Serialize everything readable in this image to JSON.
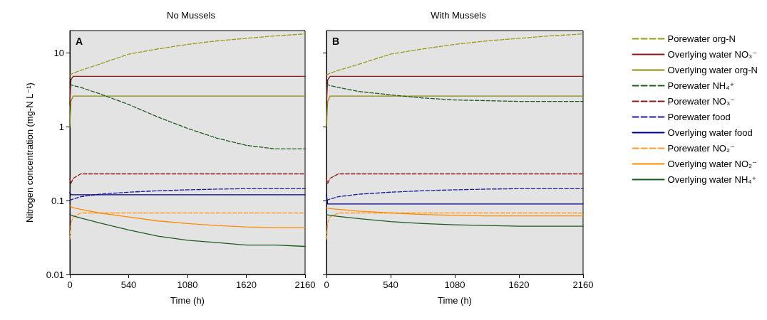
{
  "chart_data": [
    {
      "type": "line",
      "title": "No Mussels",
      "xlabel": "Time (h)",
      "ylabel": "Nitrogen concentration (mg-N L⁻¹)",
      "annotations": [
        "A"
      ],
      "x": [
        0,
        10,
        30,
        100,
        270,
        540,
        810,
        1080,
        1350,
        1620,
        1890,
        2160
      ],
      "xlim": [
        0,
        2160
      ],
      "xticks": [
        0,
        540,
        1080,
        1620,
        2160
      ],
      "ylim": [
        0.01,
        20
      ],
      "yticks": [
        0.01,
        0.1,
        1,
        10
      ],
      "log": "y",
      "grid": false,
      "legend": false,
      "marker": "none",
      "series": [
        {
          "color": "#9a9a1a",
          "line_style": "dashed",
          "values": [
            5,
            5.1,
            5.3,
            5.8,
            7,
            9.6,
            11.3,
            13,
            14.5,
            15.7,
            17,
            18
          ]
        },
        {
          "color": "#8b1a1a",
          "line_style": "solid",
          "values": [
            2,
            4.3,
            4.8,
            4.8,
            4.8,
            4.8,
            4.8,
            4.8,
            4.8,
            4.8,
            4.8,
            4.8
          ]
        },
        {
          "color": "#8c8c10",
          "line_style": "solid",
          "values": [
            1,
            2.2,
            2.6,
            2.6,
            2.6,
            2.6,
            2.6,
            2.6,
            2.6,
            2.6,
            2.6,
            2.6
          ]
        },
        {
          "color": "#1e5a1e",
          "line_style": "dashed",
          "values": [
            3.8,
            3.7,
            3.6,
            3.4,
            2.8,
            2.0,
            1.35,
            0.95,
            0.7,
            0.56,
            0.5,
            0.5
          ]
        },
        {
          "color": "#8b1a1a",
          "line_style": "dashed",
          "values": [
            0.2,
            0.17,
            0.2,
            0.23,
            0.23,
            0.23,
            0.23,
            0.23,
            0.23,
            0.23,
            0.23,
            0.23
          ]
        },
        {
          "color": "#1a1a9a",
          "line_style": "dashed",
          "values": [
            0.1,
            0.102,
            0.105,
            0.113,
            0.122,
            0.13,
            0.136,
            0.14,
            0.143,
            0.145,
            0.145,
            0.145
          ]
        },
        {
          "color": "#00008b",
          "line_style": "solid",
          "values": [
            0.13,
            0.12,
            0.12,
            0.12,
            0.12,
            0.12,
            0.12,
            0.12,
            0.12,
            0.12,
            0.12,
            0.12
          ]
        },
        {
          "color": "#ff9a2a",
          "line_style": "dashed",
          "values": [
            0.03,
            0.05,
            0.06,
            0.068,
            0.068,
            0.068,
            0.068,
            0.068,
            0.068,
            0.068,
            0.068,
            0.068
          ]
        },
        {
          "color": "#ff8c00",
          "line_style": "solid",
          "values": [
            0.085,
            0.083,
            0.08,
            0.076,
            0.068,
            0.06,
            0.053,
            0.049,
            0.046,
            0.044,
            0.043,
            0.043
          ]
        },
        {
          "color": "#1e5a1e",
          "line_style": "solid",
          "values": [
            0.065,
            0.064,
            0.062,
            0.058,
            0.05,
            0.04,
            0.033,
            0.029,
            0.027,
            0.025,
            0.025,
            0.024
          ]
        }
      ]
    },
    {
      "type": "line",
      "title": "With Mussels",
      "xlabel": "Time (h)",
      "annotations": [
        "B"
      ],
      "x": [
        0,
        10,
        30,
        100,
        270,
        540,
        810,
        1080,
        1350,
        1620,
        1890,
        2160
      ],
      "xlim": [
        0,
        2160
      ],
      "xticks": [
        0,
        540,
        1080,
        1620,
        2160
      ],
      "ylim": [
        0.01,
        20
      ],
      "yticks": [
        0.01,
        0.1,
        1,
        10
      ],
      "log": "y",
      "grid": false,
      "legend": "right",
      "marker": "none",
      "tick_labels": "x",
      "series": [
        {
          "name": "Porewater org-N",
          "color": "#9a9a1a",
          "line_style": "dashed",
          "values": [
            5,
            5.1,
            5.3,
            5.8,
            7,
            9.6,
            11.3,
            13,
            14.5,
            15.7,
            17,
            18
          ]
        },
        {
          "name": "Overlying water NO₃⁻",
          "color": "#8b1a1a",
          "line_style": "solid",
          "values": [
            2,
            4.3,
            4.8,
            4.8,
            4.8,
            4.8,
            4.8,
            4.8,
            4.8,
            4.8,
            4.8,
            4.8
          ]
        },
        {
          "name": "Overlying water org-N",
          "color": "#8c8c10",
          "line_style": "solid",
          "values": [
            1,
            2.2,
            2.6,
            2.6,
            2.6,
            2.6,
            2.6,
            2.6,
            2.6,
            2.6,
            2.6,
            2.6
          ]
        },
        {
          "name": "Porewater NH₄⁺",
          "color": "#1e5a1e",
          "line_style": "dashed",
          "values": [
            3.8,
            3.7,
            3.6,
            3.4,
            3.0,
            2.7,
            2.45,
            2.3,
            2.25,
            2.2,
            2.2,
            2.2
          ]
        },
        {
          "name": "Porewater NO₃⁻",
          "color": "#8b1a1a",
          "line_style": "dashed",
          "values": [
            0.2,
            0.17,
            0.2,
            0.23,
            0.23,
            0.23,
            0.23,
            0.23,
            0.23,
            0.23,
            0.23,
            0.23
          ]
        },
        {
          "name": "Porewater food",
          "color": "#1a1a9a",
          "line_style": "dashed",
          "values": [
            0.1,
            0.102,
            0.105,
            0.113,
            0.122,
            0.13,
            0.136,
            0.14,
            0.143,
            0.145,
            0.145,
            0.145
          ]
        },
        {
          "name": "Overlying water food",
          "color": "#00008b",
          "line_style": "solid",
          "values": [
            0.12,
            0.09,
            0.09,
            0.09,
            0.09,
            0.09,
            0.09,
            0.09,
            0.09,
            0.09,
            0.09,
            0.09
          ]
        },
        {
          "name": "Porewater NO₂⁻",
          "color": "#ff9a2a",
          "line_style": "dashed",
          "values": [
            0.03,
            0.05,
            0.06,
            0.068,
            0.068,
            0.068,
            0.068,
            0.068,
            0.068,
            0.068,
            0.068,
            0.068
          ]
        },
        {
          "name": "Overlying water NO₂⁻",
          "color": "#ff8c00",
          "line_style": "solid",
          "values": [
            0.08,
            0.079,
            0.078,
            0.076,
            0.072,
            0.068,
            0.065,
            0.063,
            0.062,
            0.062,
            0.062,
            0.062
          ]
        },
        {
          "name": "Overlying water NH₄⁺",
          "color": "#1e5a1e",
          "line_style": "solid",
          "values": [
            0.065,
            0.064,
            0.063,
            0.061,
            0.057,
            0.052,
            0.049,
            0.047,
            0.046,
            0.045,
            0.045,
            0.045
          ]
        }
      ]
    }
  ]
}
